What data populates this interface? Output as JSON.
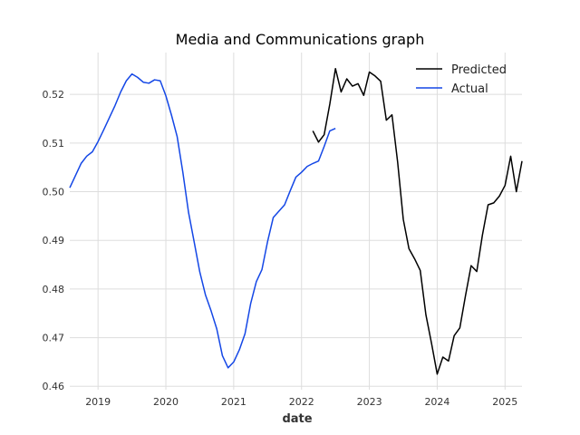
{
  "chart_data": {
    "type": "line",
    "title": "Media and Communications graph",
    "xlabel": "date",
    "ylabel": "",
    "x_ticks": [
      "2019",
      "2020",
      "2021",
      "2022",
      "2023",
      "2024",
      "2025"
    ],
    "y_ticks": [
      "0.46",
      "0.47",
      "0.48",
      "0.49",
      "0.50",
      "0.51",
      "0.52"
    ],
    "xlim": [
      "2018-08",
      "2025-04"
    ],
    "ylim": [
      0.4593,
      0.5286
    ],
    "grid": true,
    "legend_position": "top-right",
    "series": [
      {
        "name": "Predicted",
        "color": "#000000",
        "points": [
          [
            "2022-03",
            0.5125
          ],
          [
            "2022-04",
            0.5102
          ],
          [
            "2022-05",
            0.5117
          ],
          [
            "2022-06",
            0.518
          ],
          [
            "2022-07",
            0.5253
          ],
          [
            "2022-08",
            0.5205
          ],
          [
            "2022-09",
            0.5232
          ],
          [
            "2022-10",
            0.5217
          ],
          [
            "2022-11",
            0.5222
          ],
          [
            "2022-12",
            0.5198
          ],
          [
            "2023-01",
            0.5246
          ],
          [
            "2023-02",
            0.5238
          ],
          [
            "2023-03",
            0.5227
          ],
          [
            "2023-04",
            0.5147
          ],
          [
            "2023-05",
            0.5158
          ],
          [
            "2023-06",
            0.5061
          ],
          [
            "2023-07",
            0.4943
          ],
          [
            "2023-08",
            0.4883
          ],
          [
            "2023-09",
            0.4862
          ],
          [
            "2023-10",
            0.4838
          ],
          [
            "2023-11",
            0.4747
          ],
          [
            "2023-12",
            0.4688
          ],
          [
            "2024-01",
            0.4625
          ],
          [
            "2024-02",
            0.466
          ],
          [
            "2024-03",
            0.4652
          ],
          [
            "2024-04",
            0.4704
          ],
          [
            "2024-05",
            0.472
          ],
          [
            "2024-06",
            0.4786
          ],
          [
            "2024-07",
            0.4848
          ],
          [
            "2024-08",
            0.4836
          ],
          [
            "2024-09",
            0.4911
          ],
          [
            "2024-10",
            0.4973
          ],
          [
            "2024-11",
            0.4977
          ],
          [
            "2024-12",
            0.4991
          ],
          [
            "2025-01",
            0.5013
          ],
          [
            "2025-02",
            0.5073
          ],
          [
            "2025-03",
            0.5
          ],
          [
            "2025-04",
            0.5063
          ]
        ]
      },
      {
        "name": "Actual",
        "color": "#1447e6",
        "points": [
          [
            "2018-08",
            0.5008
          ],
          [
            "2018-09",
            0.5033
          ],
          [
            "2018-10",
            0.5058
          ],
          [
            "2018-11",
            0.5073
          ],
          [
            "2018-12",
            0.5082
          ],
          [
            "2019-01",
            0.5103
          ],
          [
            "2019-02",
            0.5127
          ],
          [
            "2019-03",
            0.5152
          ],
          [
            "2019-04",
            0.5177
          ],
          [
            "2019-05",
            0.5205
          ],
          [
            "2019-06",
            0.5228
          ],
          [
            "2019-07",
            0.5242
          ],
          [
            "2019-08",
            0.5235
          ],
          [
            "2019-09",
            0.5225
          ],
          [
            "2019-10",
            0.5223
          ],
          [
            "2019-11",
            0.523
          ],
          [
            "2019-12",
            0.5228
          ],
          [
            "2020-01",
            0.5197
          ],
          [
            "2020-02",
            0.5157
          ],
          [
            "2020-03",
            0.5113
          ],
          [
            "2020-04",
            0.504
          ],
          [
            "2020-05",
            0.4958
          ],
          [
            "2020-06",
            0.4897
          ],
          [
            "2020-07",
            0.4835
          ],
          [
            "2020-08",
            0.4788
          ],
          [
            "2020-09",
            0.4755
          ],
          [
            "2020-10",
            0.4718
          ],
          [
            "2020-11",
            0.4663
          ],
          [
            "2020-12",
            0.4638
          ],
          [
            "2021-01",
            0.465
          ],
          [
            "2021-02",
            0.4675
          ],
          [
            "2021-03",
            0.4708
          ],
          [
            "2021-04",
            0.477
          ],
          [
            "2021-05",
            0.4815
          ],
          [
            "2021-06",
            0.484
          ],
          [
            "2021-07",
            0.4898
          ],
          [
            "2021-08",
            0.4947
          ],
          [
            "2021-09",
            0.496
          ],
          [
            "2021-10",
            0.4973
          ],
          [
            "2021-11",
            0.5002
          ],
          [
            "2021-12",
            0.503
          ],
          [
            "2022-01",
            0.504
          ],
          [
            "2022-02",
            0.5052
          ],
          [
            "2022-03",
            0.5058
          ],
          [
            "2022-04",
            0.5063
          ],
          [
            "2022-05",
            0.5093
          ],
          [
            "2022-06",
            0.5125
          ],
          [
            "2022-07",
            0.513
          ]
        ]
      }
    ]
  }
}
